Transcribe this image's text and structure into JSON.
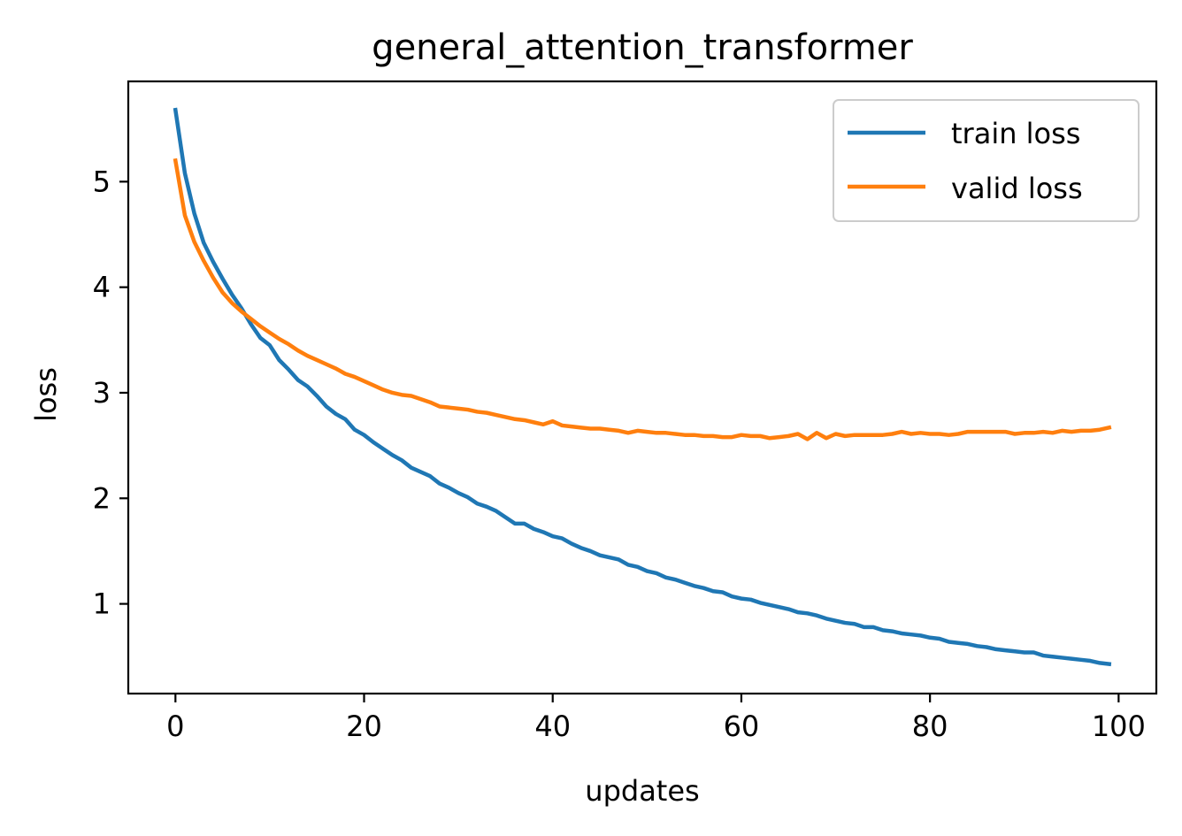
{
  "chart_data": {
    "type": "line",
    "title": "general_attention_transformer",
    "xlabel": "updates",
    "ylabel": "loss",
    "xlim": [
      -5,
      104
    ],
    "ylim": [
      0.15,
      5.95
    ],
    "xticks": [
      0,
      20,
      40,
      60,
      80,
      100
    ],
    "yticks": [
      1,
      2,
      3,
      4,
      5
    ],
    "xtick_labels": [
      "0",
      "20",
      "40",
      "60",
      "80",
      "100"
    ],
    "ytick_labels": [
      "1",
      "2",
      "3",
      "4",
      "5"
    ],
    "grid": false,
    "legend_position": "top-right",
    "series": [
      {
        "name": "train loss",
        "color": "#1f77b4",
        "values": [
          5.68,
          5.08,
          4.7,
          4.42,
          4.24,
          4.08,
          3.93,
          3.8,
          3.65,
          3.52,
          3.45,
          3.31,
          3.22,
          3.12,
          3.06,
          2.97,
          2.87,
          2.8,
          2.75,
          2.65,
          2.6,
          2.53,
          2.47,
          2.41,
          2.36,
          2.29,
          2.25,
          2.21,
          2.14,
          2.1,
          2.05,
          2.01,
          1.95,
          1.92,
          1.88,
          1.82,
          1.76,
          1.76,
          1.71,
          1.68,
          1.64,
          1.62,
          1.57,
          1.53,
          1.5,
          1.46,
          1.44,
          1.42,
          1.37,
          1.35,
          1.31,
          1.29,
          1.25,
          1.23,
          1.2,
          1.17,
          1.15,
          1.12,
          1.11,
          1.07,
          1.05,
          1.04,
          1.01,
          0.99,
          0.97,
          0.95,
          0.92,
          0.91,
          0.89,
          0.86,
          0.84,
          0.82,
          0.81,
          0.78,
          0.78,
          0.75,
          0.74,
          0.72,
          0.71,
          0.7,
          0.68,
          0.67,
          0.64,
          0.63,
          0.62,
          0.6,
          0.59,
          0.57,
          0.56,
          0.55,
          0.54,
          0.54,
          0.51,
          0.5,
          0.49,
          0.48,
          0.47,
          0.46,
          0.44,
          0.43
        ]
      },
      {
        "name": "valid loss",
        "color": "#ff7f0e",
        "values": [
          5.2,
          4.68,
          4.43,
          4.25,
          4.09,
          3.95,
          3.85,
          3.77,
          3.7,
          3.63,
          3.57,
          3.51,
          3.46,
          3.4,
          3.35,
          3.31,
          3.27,
          3.23,
          3.18,
          3.15,
          3.11,
          3.07,
          3.03,
          3.0,
          2.98,
          2.97,
          2.94,
          2.91,
          2.87,
          2.86,
          2.85,
          2.84,
          2.82,
          2.81,
          2.79,
          2.77,
          2.75,
          2.74,
          2.72,
          2.7,
          2.73,
          2.69,
          2.68,
          2.67,
          2.66,
          2.66,
          2.65,
          2.64,
          2.62,
          2.64,
          2.63,
          2.62,
          2.62,
          2.61,
          2.6,
          2.6,
          2.59,
          2.59,
          2.58,
          2.58,
          2.6,
          2.59,
          2.59,
          2.57,
          2.58,
          2.59,
          2.61,
          2.56,
          2.62,
          2.57,
          2.61,
          2.59,
          2.6,
          2.6,
          2.6,
          2.6,
          2.61,
          2.63,
          2.61,
          2.62,
          2.61,
          2.61,
          2.6,
          2.61,
          2.63,
          2.63,
          2.63,
          2.63,
          2.63,
          2.61,
          2.62,
          2.62,
          2.63,
          2.62,
          2.64,
          2.63,
          2.64,
          2.64,
          2.65,
          2.67
        ]
      }
    ]
  }
}
